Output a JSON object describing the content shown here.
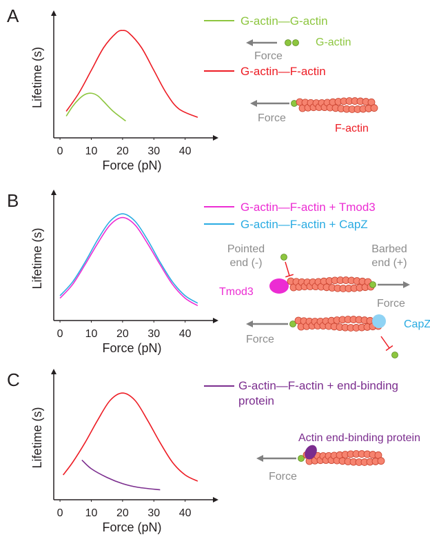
{
  "chart_data": [
    {
      "type": "line",
      "panel_label": "A",
      "x_label": "Force (pN)",
      "y_label": "Lifetime (s)",
      "xlim": [
        -2,
        48
      ],
      "xticks": [
        0,
        10,
        20,
        30,
        40
      ],
      "ylim": [
        0,
        1
      ],
      "series": [
        {
          "name": "G-actin—G-actin",
          "color": "#8dc63f",
          "x": [
            2,
            4,
            6,
            8,
            10,
            12,
            14,
            17,
            21
          ],
          "values": [
            0.18,
            0.26,
            0.32,
            0.36,
            0.37,
            0.35,
            0.3,
            0.22,
            0.14
          ]
        },
        {
          "name": "G-actin—F-actin",
          "color": "#ed1c24",
          "x": [
            2,
            6,
            10,
            14,
            18,
            20,
            22,
            26,
            30,
            34,
            38,
            44
          ],
          "values": [
            0.22,
            0.37,
            0.56,
            0.75,
            0.87,
            0.89,
            0.87,
            0.75,
            0.56,
            0.37,
            0.24,
            0.17
          ]
        }
      ],
      "annotations": [
        {
          "text": "G-actin",
          "color": "#8dc63f"
        },
        {
          "text": "Force",
          "color": "#8c8c8c"
        },
        {
          "text": "Force",
          "color": "#8c8c8c"
        },
        {
          "text": "F-actin",
          "color": "#ed1c24"
        }
      ]
    },
    {
      "type": "line",
      "panel_label": "B",
      "x_label": "Force (pN)",
      "y_label": "Lifetime (s)",
      "xlim": [
        -2,
        48
      ],
      "xticks": [
        0,
        10,
        20,
        30,
        40
      ],
      "ylim": [
        0,
        1
      ],
      "series": [
        {
          "name": "G-actin—F-actin + Tmod3",
          "color": "#ec2cd3",
          "x": [
            0,
            4,
            8,
            12,
            16,
            20,
            24,
            28,
            32,
            36,
            40,
            44
          ],
          "values": [
            0.18,
            0.29,
            0.45,
            0.62,
            0.77,
            0.83,
            0.77,
            0.62,
            0.45,
            0.29,
            0.18,
            0.12
          ]
        },
        {
          "name": "G-actin—F-actin + CapZ",
          "color": "#29abe2",
          "x": [
            0,
            4,
            8,
            12,
            16,
            20,
            24,
            28,
            32,
            36,
            40,
            44
          ],
          "values": [
            0.2,
            0.31,
            0.47,
            0.65,
            0.8,
            0.86,
            0.8,
            0.65,
            0.47,
            0.31,
            0.2,
            0.14
          ]
        }
      ],
      "annotations": [
        {
          "text": "Pointed",
          "color": "#8c8c8c"
        },
        {
          "text": "end (-)",
          "color": "#8c8c8c"
        },
        {
          "text": "Barbed",
          "color": "#8c8c8c"
        },
        {
          "text": "end (+)",
          "color": "#8c8c8c"
        },
        {
          "text": "Tmod3",
          "color": "#ec2cd3"
        },
        {
          "text": "Force",
          "color": "#8c8c8c"
        },
        {
          "text": "Force",
          "color": "#8c8c8c"
        },
        {
          "text": "CapZ",
          "color": "#29abe2"
        }
      ]
    },
    {
      "type": "line",
      "panel_label": "C",
      "x_label": "Force (pN)",
      "y_label": "Lifetime (s)",
      "xlim": [
        -2,
        48
      ],
      "xticks": [
        0,
        10,
        20,
        30,
        40
      ],
      "ylim": [
        0,
        1
      ],
      "series": [
        {
          "name": "G-actin—F-actin + end-binding protein",
          "color": "#7b2d8e",
          "x": [
            7,
            10,
            15,
            20,
            25,
            32
          ],
          "values": [
            0.32,
            0.25,
            0.18,
            0.13,
            0.1,
            0.08
          ]
        },
        {
          "name": null,
          "color": "#ed1c24",
          "x": [
            1,
            4,
            8,
            12,
            16,
            20,
            24,
            28,
            32,
            36,
            40,
            44
          ],
          "values": [
            0.2,
            0.3,
            0.46,
            0.64,
            0.8,
            0.86,
            0.8,
            0.64,
            0.46,
            0.3,
            0.2,
            0.15
          ]
        }
      ],
      "annotations": [
        {
          "text": "Actin end-binding protein",
          "color": "#7b2d8e"
        },
        {
          "text": "Force",
          "color": "#8c8c8c"
        }
      ]
    }
  ]
}
